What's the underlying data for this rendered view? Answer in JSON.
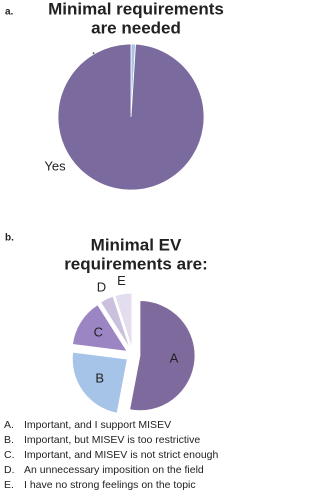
{
  "chart_data": [
    {
      "type": "pie",
      "panel": "a.",
      "title": [
        "Minimal requirements",
        "are needed"
      ],
      "categories": [
        "No",
        "Yes"
      ],
      "values": [
        1,
        99
      ],
      "colors": [
        "#a9c4e6",
        "#7b6a9e"
      ]
    },
    {
      "type": "pie",
      "panel": "b.",
      "title": [
        "Minimal EV",
        "requirements are:"
      ],
      "categories": [
        "A",
        "B",
        "C",
        "D",
        "E"
      ],
      "values": [
        53,
        24,
        14,
        4,
        5
      ],
      "colors": [
        "#7f6a9e",
        "#a6c3e8",
        "#9b85c2",
        "#cbc1de",
        "#e3ddee"
      ],
      "legend": [
        {
          "key": "A.",
          "text": "Important, and I support MISEV"
        },
        {
          "key": "B.",
          "text": "Important, but MISEV is too restrictive"
        },
        {
          "key": "C.",
          "text": "Important, and MISEV is not strict enough"
        },
        {
          "key": "D.",
          "text": "An unnecessary imposition on the field"
        },
        {
          "key": "E.",
          "text": "I have no strong feelings on the topic"
        }
      ]
    }
  ]
}
